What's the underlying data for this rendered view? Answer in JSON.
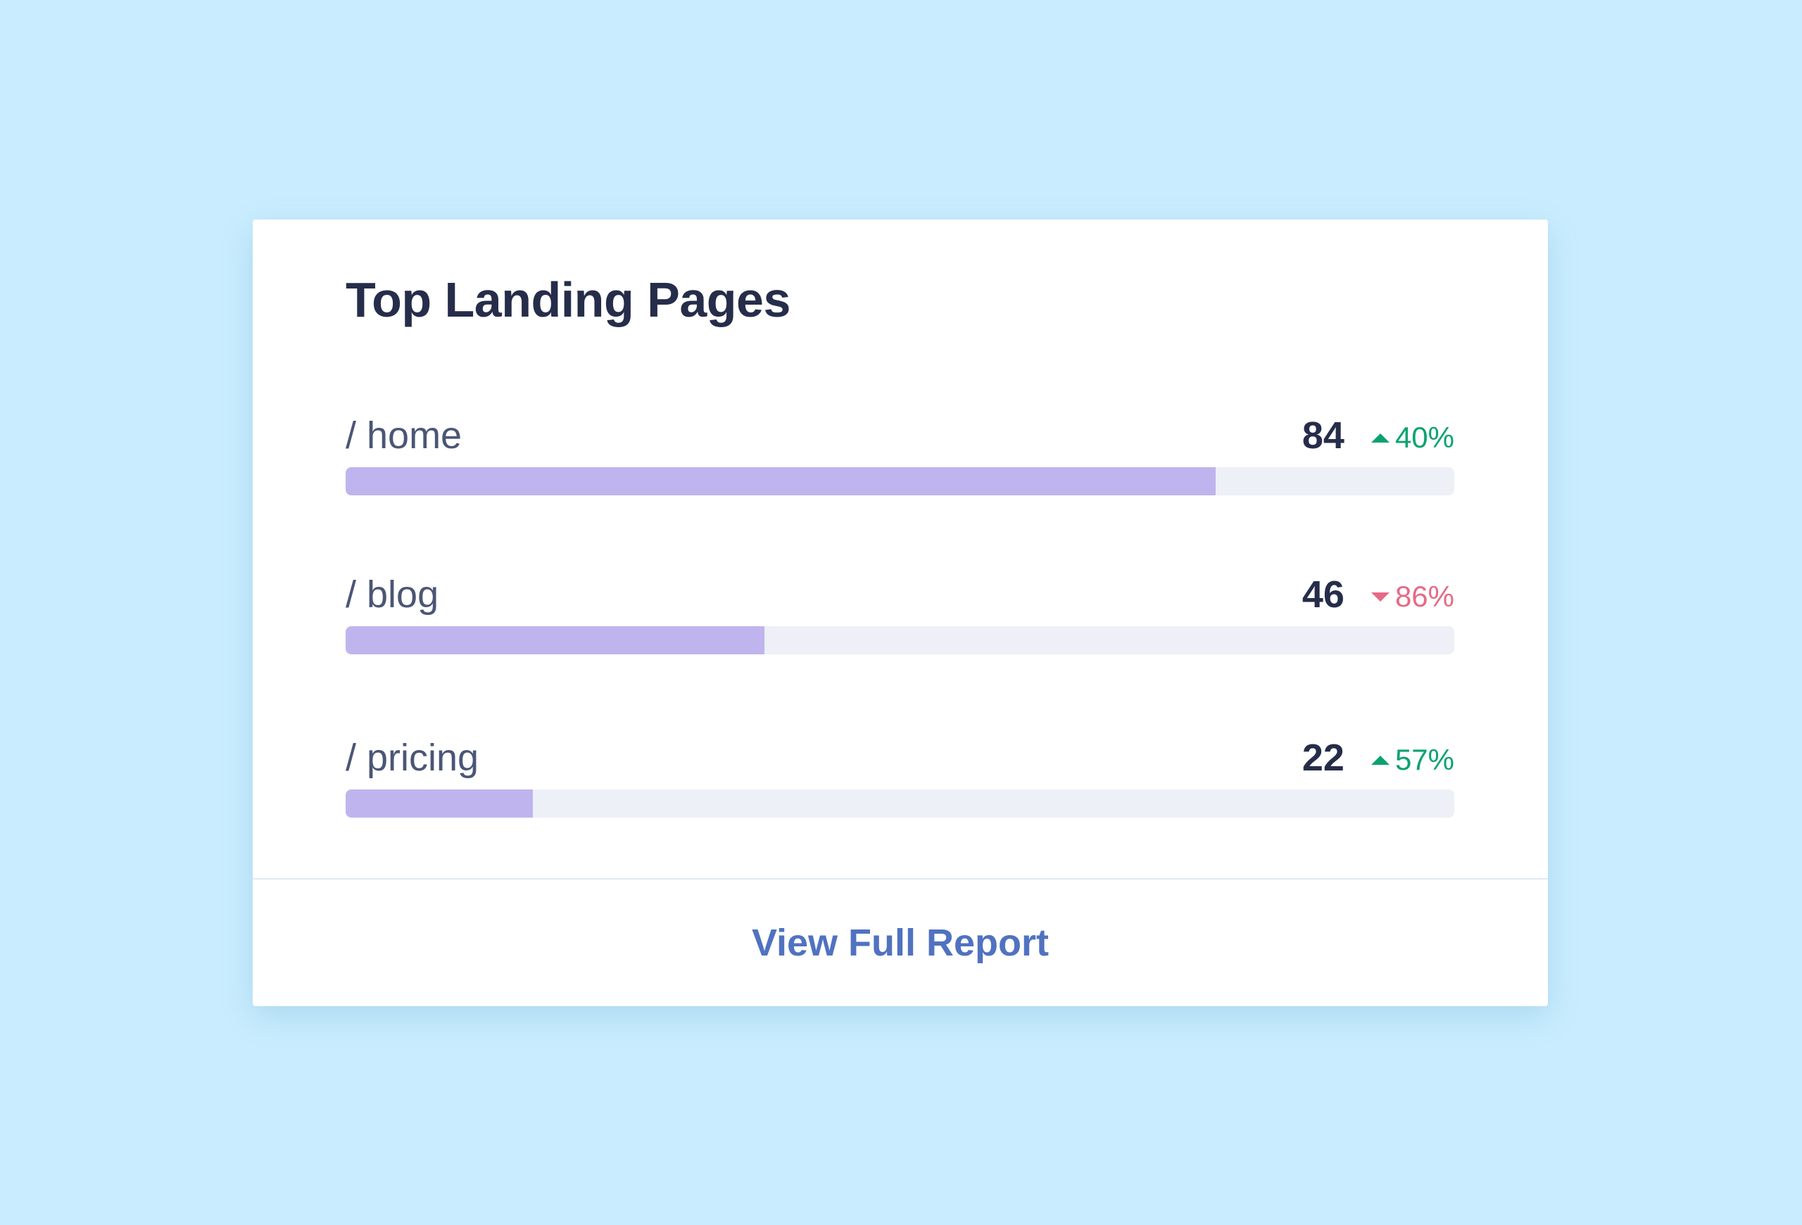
{
  "card": {
    "title": "Top Landing Pages",
    "rows": [
      {
        "label": "/ home",
        "count": "84",
        "change": "40%",
        "direction": "up",
        "bar_fraction": 0.785
      },
      {
        "label": "/ blog",
        "count": "46",
        "change": "86%",
        "direction": "down",
        "bar_fraction": 0.378
      },
      {
        "label": "/ pricing",
        "count": "22",
        "change": "57%",
        "direction": "up",
        "bar_fraction": 0.169
      }
    ],
    "footer_link": "View Full Report"
  },
  "colors": {
    "background": "#c9edfe",
    "title": "#262d4a",
    "bar_fill": "#c0b4ee",
    "bar_track": "#edf0f6",
    "positive": "#0aa370",
    "negative": "#e66a85",
    "link": "#5072c0"
  }
}
